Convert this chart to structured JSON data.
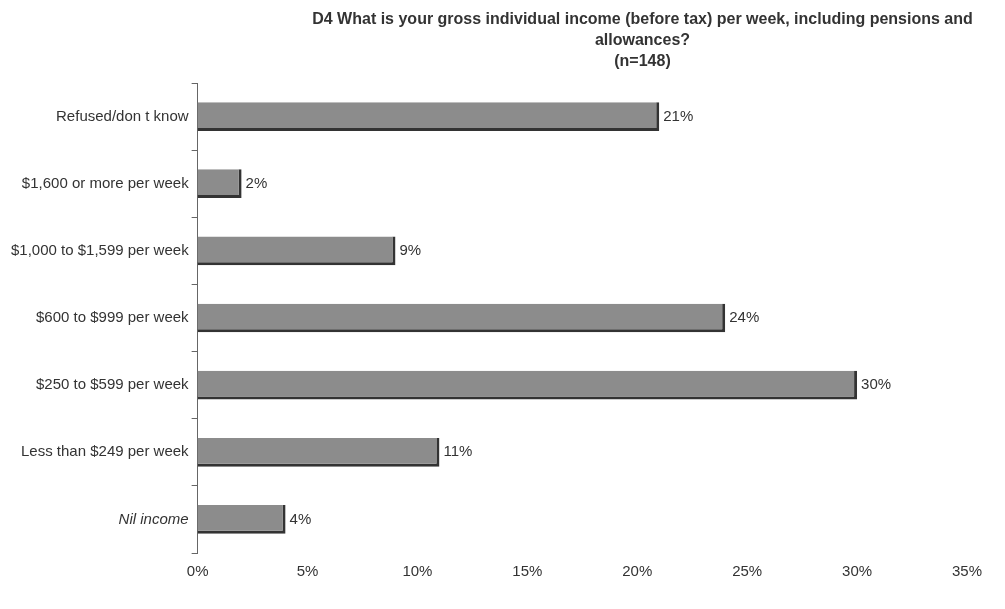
{
  "chart_data": {
    "type": "bar",
    "orientation": "horizontal",
    "title": "D4 What is your gross individual income (before tax) per week, including pensions and allowances?",
    "subtitle": "(n=148)",
    "categories": [
      "Refused/don t know",
      "$1,600 or more per week",
      "$1,000 to $1,599 per week",
      "$600 to $999 per week",
      "$250 to $599 per week",
      "Less than $249 per week",
      "Nil income"
    ],
    "values": [
      21,
      2,
      9,
      24,
      30,
      11,
      4
    ],
    "value_labels": [
      "21%",
      "2%",
      "9%",
      "24%",
      "30%",
      "11%",
      "4%"
    ],
    "color": "#8c8c8c",
    "xlim": [
      0,
      35
    ],
    "xticks": [
      {
        "value": 0,
        "label": "0%"
      },
      {
        "value": 5,
        "label": "5%"
      },
      {
        "value": 10,
        "label": "10%"
      },
      {
        "value": 15,
        "label": "15%"
      },
      {
        "value": 20,
        "label": "20%"
      },
      {
        "value": 25,
        "label": "25%"
      },
      {
        "value": 30,
        "label": "30%"
      },
      {
        "value": 35,
        "label": "35%"
      }
    ],
    "grid": false,
    "legend": false
  }
}
